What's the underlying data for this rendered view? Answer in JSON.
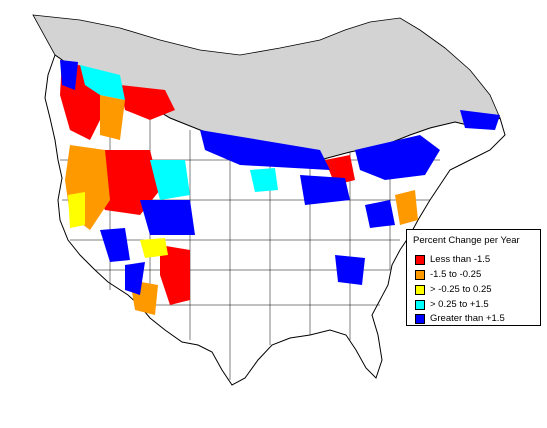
{
  "legend": {
    "title": "Percent Change per Year",
    "items": [
      {
        "label": "Less than -1.5",
        "color": "#ff0000"
      },
      {
        "label": "-1.5 to -0.25",
        "color": "#ff9900"
      },
      {
        "label": "> -0.25 to 0.25",
        "color": "#ffff00"
      },
      {
        "label": "> 0.25 to +1.5",
        "color": "#00ffff"
      },
      {
        "label": "Greater than +1.5",
        "color": "#0000ff"
      }
    ]
  },
  "map": {
    "unsurveyed_color": "#d3d3d3",
    "outline_color": "#000000"
  }
}
